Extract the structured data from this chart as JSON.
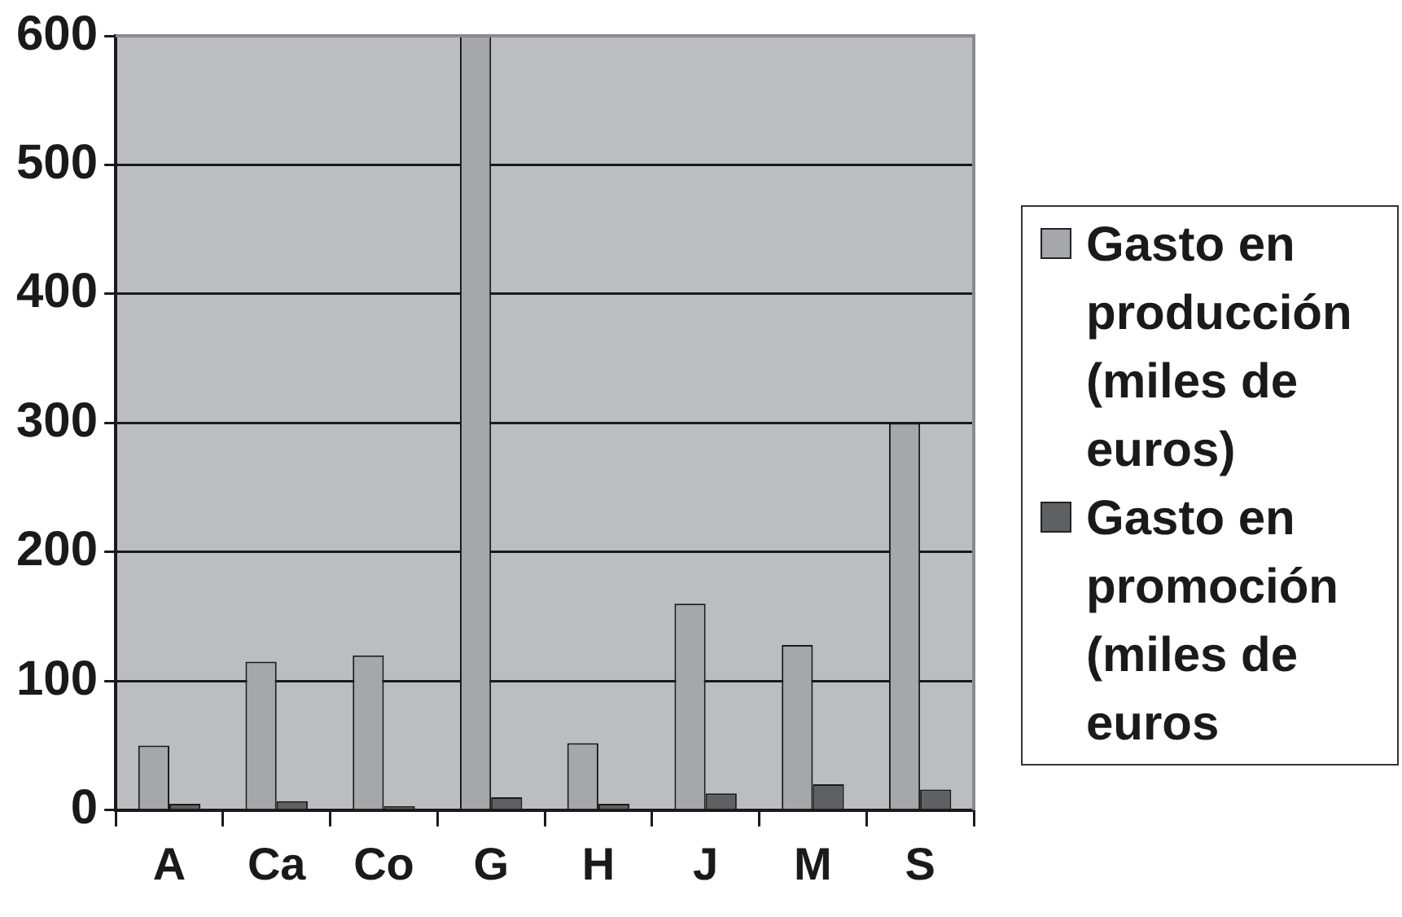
{
  "chart_data": {
    "type": "bar",
    "categories": [
      "A",
      "Ca",
      "Co",
      "G",
      "H",
      "J",
      "M",
      "S"
    ],
    "series": [
      {
        "name": "Gasto en producción (miles de euros)",
        "color": "#a6a7ab",
        "values": [
          50,
          115,
          120,
          600,
          52,
          160,
          128,
          300
        ]
      },
      {
        "name": "Gasto en promoción (miles de euros",
        "color": "#5f6064",
        "values": [
          5,
          7,
          3,
          10,
          5,
          13,
          20,
          16
        ]
      }
    ],
    "ylim": [
      0,
      600
    ],
    "yticks": [
      0,
      100,
      200,
      300,
      400,
      500,
      600
    ],
    "grid": "y",
    "legend": "right"
  }
}
